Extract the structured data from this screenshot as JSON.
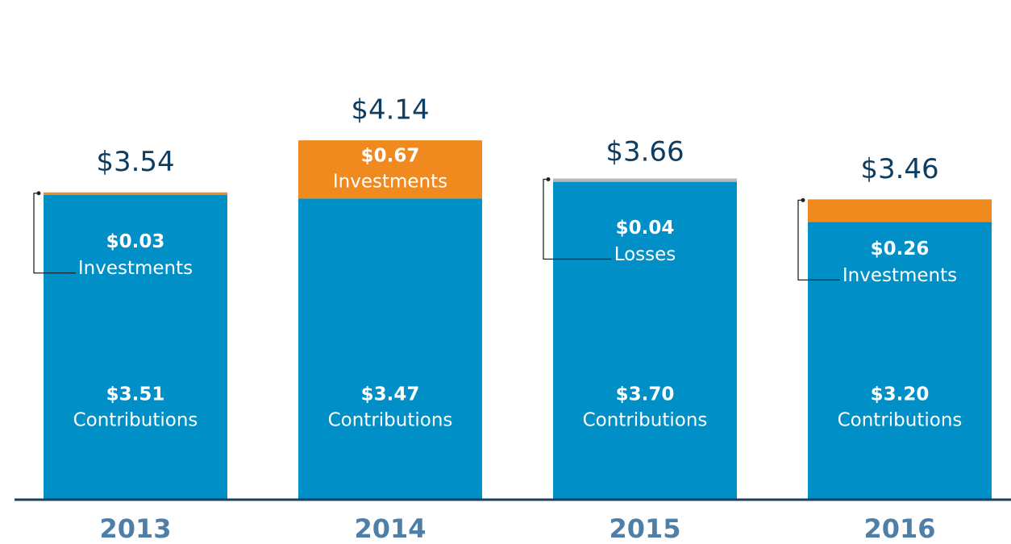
{
  "chart_data": {
    "type": "stacked_bar",
    "categories": [
      "2013",
      "2014",
      "2015",
      "2016"
    ],
    "series": [
      {
        "name": "Contributions",
        "color": "#008fc6",
        "values": [
          3.51,
          3.47,
          3.7,
          3.2
        ],
        "value_labels": [
          "$3.51",
          "$3.47",
          "$3.70",
          "$3.20"
        ]
      },
      {
        "name": "Investments",
        "color": "#f08a1f",
        "values": [
          0.03,
          0.67,
          null,
          0.26
        ],
        "value_labels": [
          "$0.03",
          "$0.67",
          null,
          "$0.26"
        ]
      },
      {
        "name": "Losses",
        "color": "#b4b8bc",
        "values": [
          null,
          null,
          -0.04,
          null
        ],
        "value_labels": [
          null,
          null,
          "$0.04",
          null
        ]
      }
    ],
    "totals": [
      3.54,
      4.14,
      3.66,
      3.46
    ],
    "total_labels": [
      "$3.54",
      "$4.14",
      "$3.66",
      "$3.46"
    ]
  }
}
